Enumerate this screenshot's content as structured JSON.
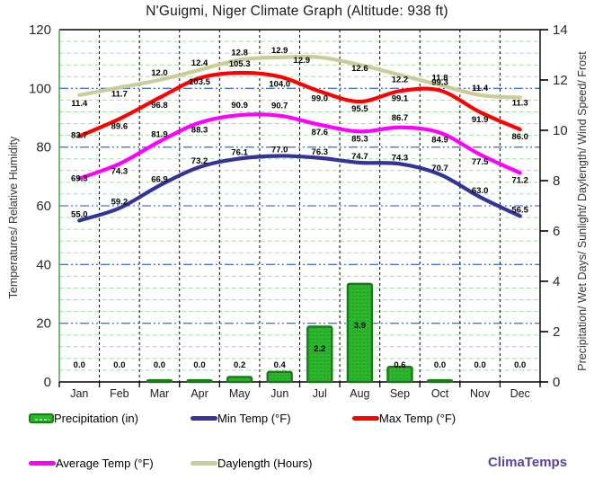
{
  "title": "N'Guigmi, Niger Climate Graph (Altitude: 938 ft)",
  "watermark": "ClimaTemps",
  "chart_data": {
    "type": "combo-bar-line",
    "categories": [
      "Jan",
      "Feb",
      "Mar",
      "Apr",
      "May",
      "Jun",
      "Jul",
      "Aug",
      "Sep",
      "Oct",
      "Nov",
      "Dec"
    ],
    "series": [
      {
        "name": "Precipitation (in)",
        "type": "bar",
        "axis": "right",
        "color": "#2db52d",
        "border_color": "#1a7a1a",
        "values": [
          0.0,
          0.0,
          0.0,
          0.0,
          0.2,
          0.4,
          2.2,
          3.9,
          0.6,
          0.0,
          0.0,
          0.0
        ],
        "bar_render_values": [
          0,
          0,
          0.07,
          0.07,
          0.2,
          0.4,
          2.2,
          3.9,
          0.6,
          0.07,
          0,
          0
        ]
      },
      {
        "name": "Min Temp (°F)",
        "type": "line",
        "axis": "left",
        "color": "#333399",
        "values": [
          55.0,
          59.2,
          66.9,
          73.2,
          76.1,
          77.0,
          76.3,
          74.7,
          74.3,
          70.7,
          63.0,
          56.5
        ]
      },
      {
        "name": "Max Temp (°F)",
        "type": "line",
        "axis": "left",
        "color": "#ff0000",
        "values": [
          83.7,
          89.6,
          96.8,
          103.5,
          105.3,
          104.0,
          99.0,
          95.5,
          99.1,
          99.3,
          91.9,
          86.0
        ]
      },
      {
        "name": "Average Temp (°F)",
        "type": "line",
        "axis": "left",
        "color": "#ff00ff",
        "values": [
          69.3,
          74.3,
          81.9,
          88.3,
          90.9,
          90.7,
          87.6,
          85.3,
          86.7,
          84.9,
          77.5,
          71.2
        ]
      },
      {
        "name": "Daylength (Hours)",
        "type": "line",
        "axis": "right",
        "color": "#cccc99",
        "values": [
          11.4,
          11.7,
          12.0,
          12.4,
          12.8,
          12.9,
          12.9,
          12.6,
          12.2,
          11.8,
          11.4,
          11.3
        ]
      }
    ],
    "left_axis": {
      "title": "Temperatures/ Relative Humidity",
      "ticks": [
        0,
        20,
        40,
        60,
        80,
        100,
        120
      ],
      "range": [
        0,
        120
      ]
    },
    "right_axis": {
      "title": "Precipitation/ Wet Days/ Sunlight/ Daylength/ Wind Speed/ Frost",
      "ticks": [
        0,
        2,
        4,
        6,
        8,
        10,
        12,
        14
      ],
      "range": [
        0,
        14
      ]
    },
    "legend": {
      "rows": [
        [
          "Precipitation (in)",
          "Min Temp (°F)",
          "Max Temp (°F)"
        ],
        [
          "Average Temp (°F)",
          "Daylength (Hours)"
        ]
      ]
    },
    "grid": {
      "minor_step_left_units": 4,
      "major_step_left_units": 20,
      "vertical_lines": "month-boundaries",
      "minor_color": "#a5dfa5",
      "major_color": "#4477dd",
      "vline_color": "#000000",
      "left_border_color": "#44aa44",
      "data_labels": true
    }
  }
}
